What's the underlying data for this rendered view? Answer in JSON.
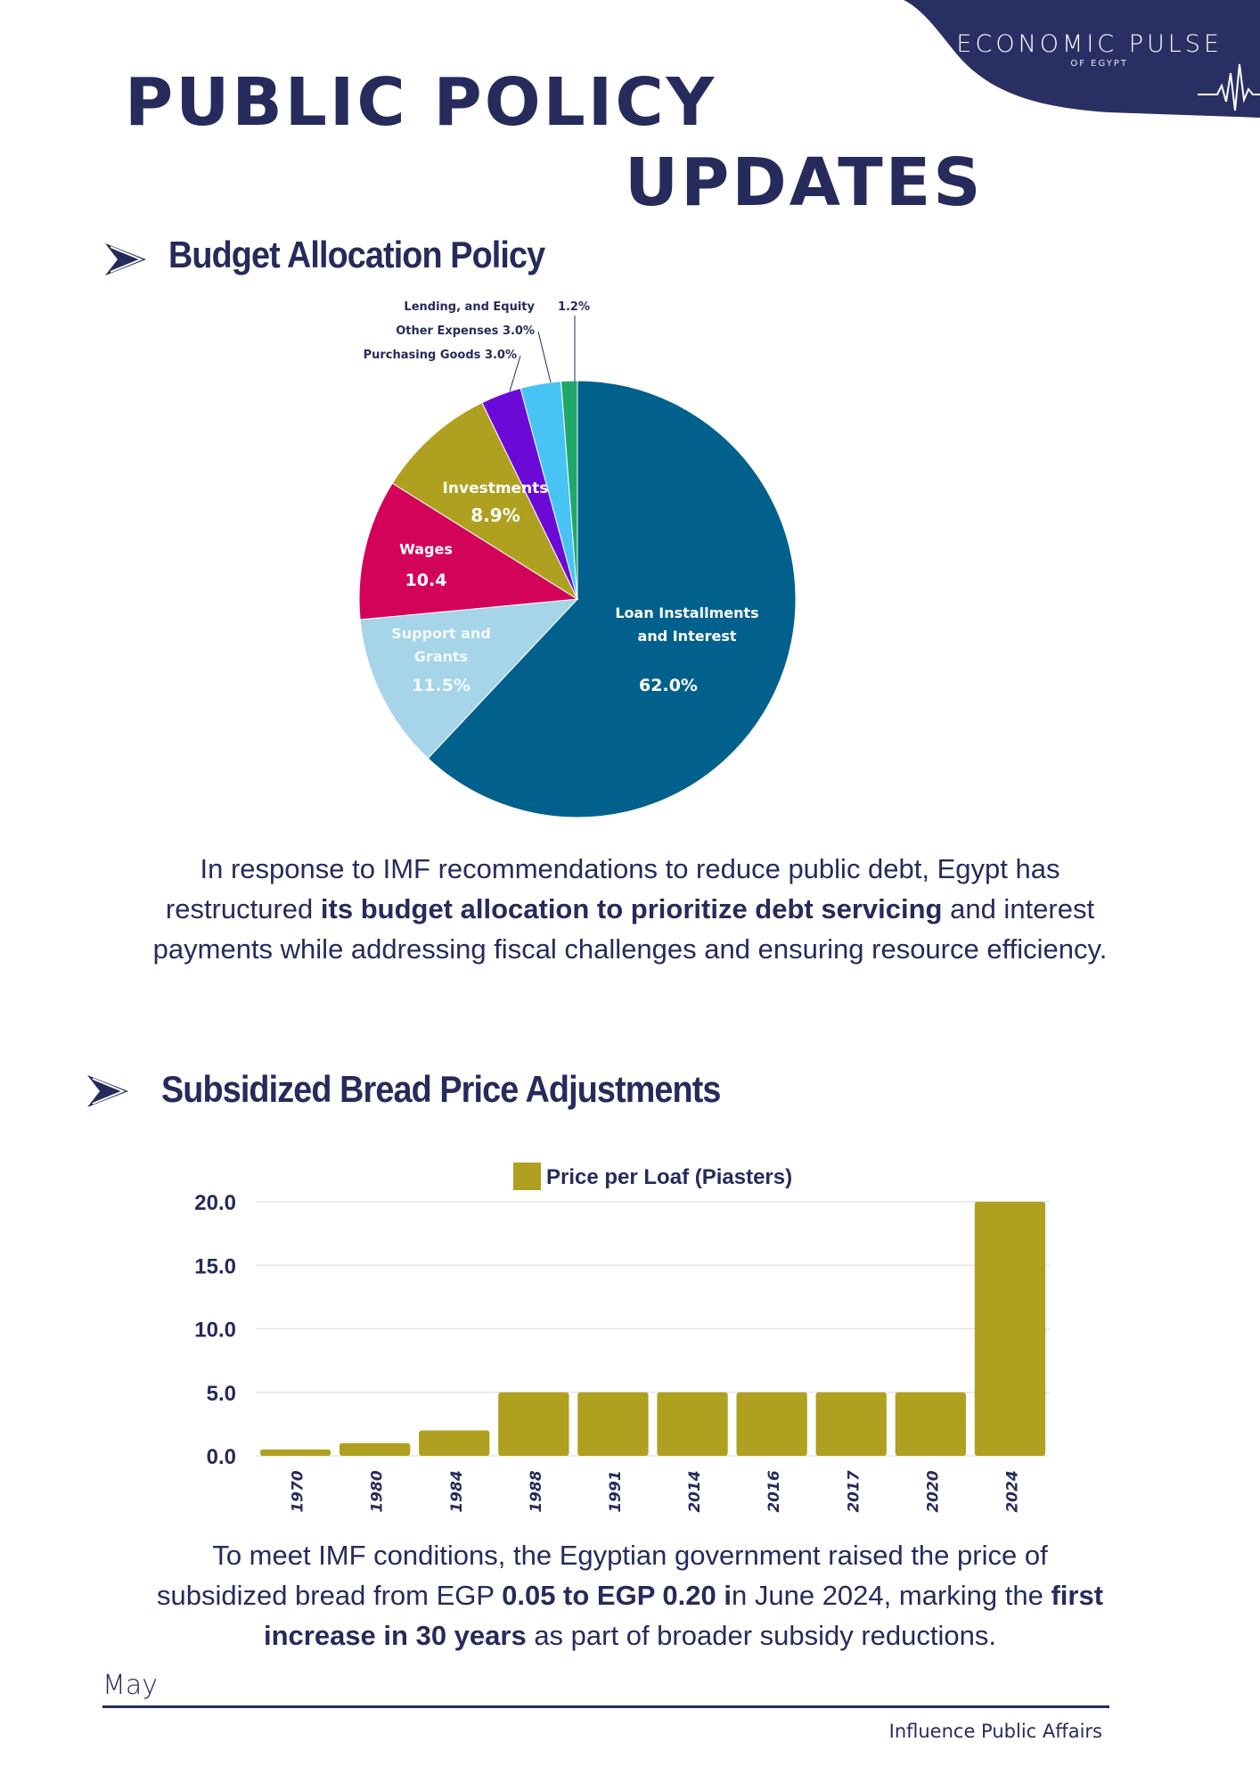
{
  "brand": {
    "name": "ECONOMIC PULSE",
    "sub": "OF EGYPT",
    "color": "#2a2f63",
    "logo_icon": "heartbeat-icon"
  },
  "title": {
    "line1": "PUBLIC POLICY",
    "line2": "UPDATES"
  },
  "section1": {
    "heading": "Budget Allocation Policy",
    "icon": "chevron-arrow-icon",
    "paragraph": {
      "l1": "In response to IMF recommendations to reduce public debt, Egypt has",
      "l2a": "restructured ",
      "l2b": "its budget allocation to prioritize debt servicing",
      "l2c": " and interest",
      "l3": "payments while addressing fiscal challenges and ensuring resource efficiency."
    }
  },
  "section2": {
    "heading": "Subsidized Bread Price Adjustments",
    "icon": "chevron-arrow-icon",
    "paragraph": {
      "l1": "To meet IMF conditions, the Egyptian government raised the price of",
      "l2a": "subsidized bread from EGP ",
      "l2b": "0.05 to EGP 0.20 i",
      "l2c": "n June 2024, marking the ",
      "l2d": "first",
      "l3a": "increase in 30 years",
      "l3b": " as part of broader subsidy reductions."
    }
  },
  "footer": {
    "month": "May",
    "org": "Influence Public Affairs"
  },
  "chart_data": [
    {
      "type": "pie",
      "start": "top",
      "direction": "clockwise",
      "slices": [
        {
          "name": "Loan Installments and Interest",
          "label1": "Loan Installments",
          "label2": "and Interest",
          "value": 62.0,
          "value_label": "62.0%",
          "color": "#02618c"
        },
        {
          "name": "Support and Grants",
          "label1": "Support and",
          "label2": "Grants",
          "value": 11.5,
          "value_label": "11.5%",
          "color": "#a6d4e8"
        },
        {
          "name": "Wages",
          "label1": "Wages",
          "value": 10.4,
          "value_label": "10.4",
          "color": "#d4035a"
        },
        {
          "name": "Investments",
          "label1": "Investments",
          "value": 8.9,
          "value_label": "8.9%",
          "color": "#b0a020"
        },
        {
          "name": "Purchasing Goods",
          "label1": "Purchasing Goods",
          "value": 3.0,
          "value_label": "3.0%",
          "color": "#6b0ad6"
        },
        {
          "name": "Other Expenses",
          "label1": "Other Expenses",
          "value": 3.0,
          "value_label": "3.0%",
          "color": "#47c4f4"
        },
        {
          "name": "Lending, and Equity",
          "label1": "Lending, and Equity",
          "value": 1.2,
          "value_label": "1.2%",
          "color": "#20a86a"
        }
      ]
    },
    {
      "type": "bar",
      "legend": "Price per Loaf (Piasters)",
      "legend_position": "top",
      "color": "#b0a020",
      "categories": [
        "1970",
        "1980",
        "1984",
        "1988",
        "1991",
        "2014",
        "2016",
        "2017",
        "2020",
        "2024"
      ],
      "values": [
        0.5,
        1,
        2,
        5,
        5,
        5,
        5,
        5,
        5,
        20
      ],
      "yticks": [
        "0.0",
        "5.0",
        "10.0",
        "15.0",
        "20.0"
      ],
      "ylim": [
        0,
        20
      ],
      "grid": true
    }
  ]
}
